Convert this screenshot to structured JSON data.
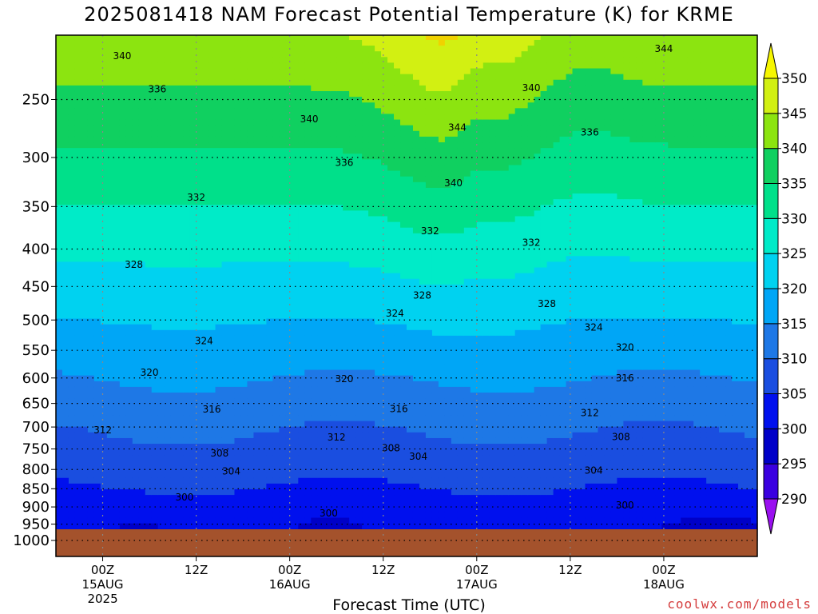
{
  "title": "2025081418 NAM Forecast Potential Temperature (K) for KRME",
  "credit": "coolwx.com/models",
  "chart_data": {
    "type": "heatmap",
    "title": "2025081418 NAM Forecast Potential Temperature (K) for KRME",
    "xlabel": "Forecast Time (UTC)",
    "ylabel": "",
    "y_scale": "log",
    "y_reversed": true,
    "ylim": [
      1000,
      200
    ],
    "x_range_hours": [
      -6,
      84
    ],
    "x_ticks": [
      {
        "hour": 0,
        "lines": [
          "00Z",
          "15AUG",
          "2025"
        ]
      },
      {
        "hour": 12,
        "lines": [
          "12Z"
        ]
      },
      {
        "hour": 24,
        "lines": [
          "00Z",
          "16AUG"
        ]
      },
      {
        "hour": 36,
        "lines": [
          "12Z"
        ]
      },
      {
        "hour": 48,
        "lines": [
          "00Z",
          "17AUG"
        ]
      },
      {
        "hour": 60,
        "lines": [
          "12Z"
        ]
      },
      {
        "hour": 72,
        "lines": [
          "00Z",
          "18AUG"
        ]
      }
    ],
    "y_ticks": [
      250,
      300,
      350,
      400,
      450,
      500,
      550,
      600,
      650,
      700,
      750,
      800,
      850,
      900,
      950,
      1000
    ],
    "grid": true,
    "legend": "right",
    "colorbar": {
      "levels": [
        290,
        295,
        300,
        305,
        310,
        315,
        320,
        325,
        330,
        335,
        340,
        345,
        350
      ],
      "colors": [
        "#3a00e0",
        "#0000c8",
        "#0010ee",
        "#1a4ee0",
        "#1e78e6",
        "#00a6f6",
        "#00d2f0",
        "#00ebc8",
        "#00e08a",
        "#10d060",
        "#8ce410",
        "#d2f012",
        "#f6f600"
      ],
      "under_color": "#9a10f0",
      "over_color": "#f0d200"
    },
    "contour_labels": [
      {
        "text": "340",
        "hour": 2.5,
        "p": 218
      },
      {
        "text": "336",
        "hour": 7,
        "p": 242
      },
      {
        "text": "340",
        "hour": 26.5,
        "p": 266
      },
      {
        "text": "344",
        "hour": 45.5,
        "p": 273
      },
      {
        "text": "340",
        "hour": 55,
        "p": 241
      },
      {
        "text": "344",
        "hour": 72,
        "p": 213
      },
      {
        "text": "336",
        "hour": 62.5,
        "p": 277
      },
      {
        "text": "336",
        "hour": 31,
        "p": 305
      },
      {
        "text": "340",
        "hour": 45,
        "p": 325
      },
      {
        "text": "332",
        "hour": 12,
        "p": 340
      },
      {
        "text": "332",
        "hour": 42,
        "p": 378
      },
      {
        "text": "332",
        "hour": 55,
        "p": 392
      },
      {
        "text": "328",
        "hour": 4,
        "p": 420
      },
      {
        "text": "328",
        "hour": 41,
        "p": 463
      },
      {
        "text": "328",
        "hour": 57,
        "p": 475
      },
      {
        "text": "324",
        "hour": 37.5,
        "p": 490
      },
      {
        "text": "324",
        "hour": 63,
        "p": 512
      },
      {
        "text": "324",
        "hour": 13,
        "p": 534
      },
      {
        "text": "320",
        "hour": 67,
        "p": 545
      },
      {
        "text": "320",
        "hour": 6,
        "p": 590
      },
      {
        "text": "320",
        "hour": 31,
        "p": 602
      },
      {
        "text": "316",
        "hour": 67,
        "p": 600
      },
      {
        "text": "316",
        "hour": 14,
        "p": 662
      },
      {
        "text": "316",
        "hour": 38,
        "p": 661
      },
      {
        "text": "312",
        "hour": 62.5,
        "p": 670
      },
      {
        "text": "312",
        "hour": 0,
        "p": 707
      },
      {
        "text": "312",
        "hour": 30,
        "p": 723
      },
      {
        "text": "308",
        "hour": 66.5,
        "p": 722
      },
      {
        "text": "308",
        "hour": 37,
        "p": 748
      },
      {
        "text": "308",
        "hour": 15,
        "p": 760
      },
      {
        "text": "304",
        "hour": 40.5,
        "p": 768
      },
      {
        "text": "304",
        "hour": 16.5,
        "p": 805
      },
      {
        "text": "304",
        "hour": 63,
        "p": 803
      },
      {
        "text": "300",
        "hour": 10.5,
        "p": 873
      },
      {
        "text": "300",
        "hour": 29,
        "p": 918
      },
      {
        "text": "300",
        "hour": 67,
        "p": 895
      }
    ]
  }
}
